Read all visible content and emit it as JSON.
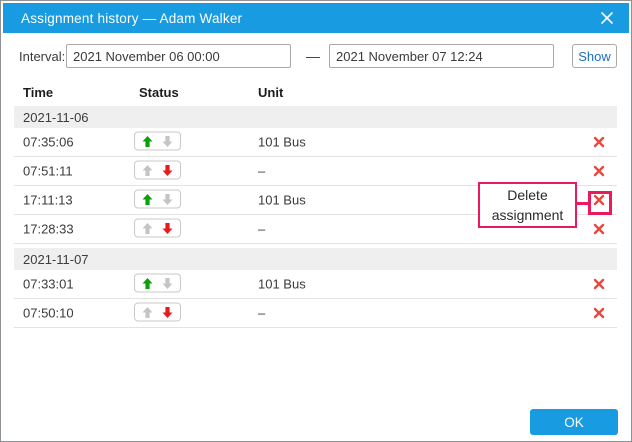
{
  "dialog": {
    "title": "Assignment history — Adam Walker"
  },
  "interval": {
    "label": "Interval:",
    "from_value": "2021 November 06 00:00",
    "separator": "—",
    "to_value": "2021 November 07 12:24",
    "show_label": "Show"
  },
  "table": {
    "headers": [
      "Time",
      "Status",
      "Unit"
    ],
    "groups": [
      {
        "date": "2021-11-06",
        "rows": [
          {
            "time": "07:35:06",
            "status": "in",
            "unit": "101 Bus"
          },
          {
            "time": "07:51:11",
            "status": "out",
            "unit": "–"
          },
          {
            "time": "17:11:13",
            "status": "in",
            "unit": "101 Bus"
          },
          {
            "time": "17:28:33",
            "status": "out",
            "unit": "–"
          }
        ]
      },
      {
        "date": "2021-11-07",
        "rows": [
          {
            "time": "07:33:01",
            "status": "in",
            "unit": "101 Bus"
          },
          {
            "time": "07:50:10",
            "status": "out",
            "unit": "–"
          }
        ]
      }
    ]
  },
  "callout": {
    "line1": "Delete",
    "line2": "assignment"
  },
  "footer": {
    "ok_label": "OK"
  },
  "icons": {
    "close": "close-icon",
    "status_up": "arrow-up-icon",
    "status_down": "arrow-down-icon",
    "delete": "delete-x-icon"
  },
  "colors": {
    "accent_blue": "#189be1",
    "show_link_blue": "#1d6fbd",
    "arrow_green": "#0ca10c",
    "arrow_red": "#e31c1c",
    "arrow_gray": "#c4c4c4",
    "delete_red": "#e8483e",
    "callout_pink": "#eb1a5a",
    "group_band_gray": "#efeff0"
  }
}
